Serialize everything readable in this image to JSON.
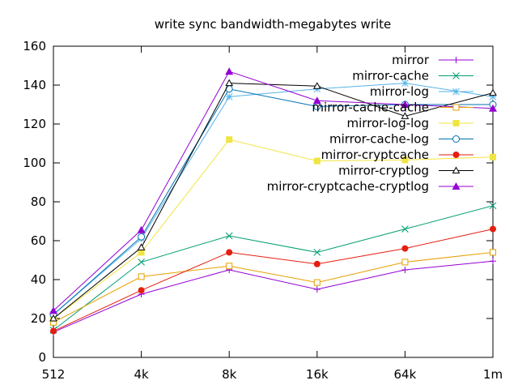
{
  "chart_data": {
    "type": "line",
    "title": "write sync bandwidth-megabytes write",
    "xlabel": "",
    "ylabel": "",
    "categories": [
      "512",
      "4k",
      "8k",
      "16k",
      "64k",
      "1m"
    ],
    "ylim": [
      0,
      160
    ],
    "yticks": [
      0,
      20,
      40,
      60,
      80,
      100,
      120,
      140,
      160
    ],
    "grid": false,
    "legend_position": "top-right",
    "series": [
      {
        "name": "mirror",
        "color": "#9400d3",
        "marker": "plus",
        "values": [
          13,
          32.5,
          45,
          35,
          45,
          49.5
        ]
      },
      {
        "name": "mirror-cache",
        "color": "#009e73",
        "marker": "cross",
        "values": [
          14,
          49,
          62.5,
          54,
          66,
          78
        ]
      },
      {
        "name": "mirror-log",
        "color": "#56b4e9",
        "marker": "asterisk",
        "values": [
          22,
          61,
          134,
          138,
          141,
          134
        ]
      },
      {
        "name": "mirror-cache-cache",
        "color": "#e69f00",
        "marker": "open-square",
        "values": [
          18,
          41.5,
          47,
          38.5,
          49,
          54
        ]
      },
      {
        "name": "mirror-log-log",
        "color": "#f0e442",
        "marker": "filled-square",
        "values": [
          20,
          54,
          112,
          101,
          101.5,
          103
        ]
      },
      {
        "name": "mirror-cache-log",
        "color": "#0072b2",
        "marker": "open-circle",
        "values": [
          22,
          62,
          138,
          129,
          130,
          130
        ]
      },
      {
        "name": "mirror-cryptcache",
        "color": "#e51e10",
        "marker": "filled-circle",
        "values": [
          13.5,
          34.5,
          54,
          48,
          56,
          66
        ]
      },
      {
        "name": "mirror-cryptlog",
        "color": "#000000",
        "marker": "open-triangle",
        "values": [
          20,
          56.5,
          141,
          139.5,
          124,
          136
        ]
      },
      {
        "name": "mirror-cryptcache-cryptlog",
        "color": "#9400d3",
        "marker": "filled-triangle",
        "values": [
          24,
          65.5,
          147,
          132,
          130,
          128
        ]
      }
    ]
  }
}
